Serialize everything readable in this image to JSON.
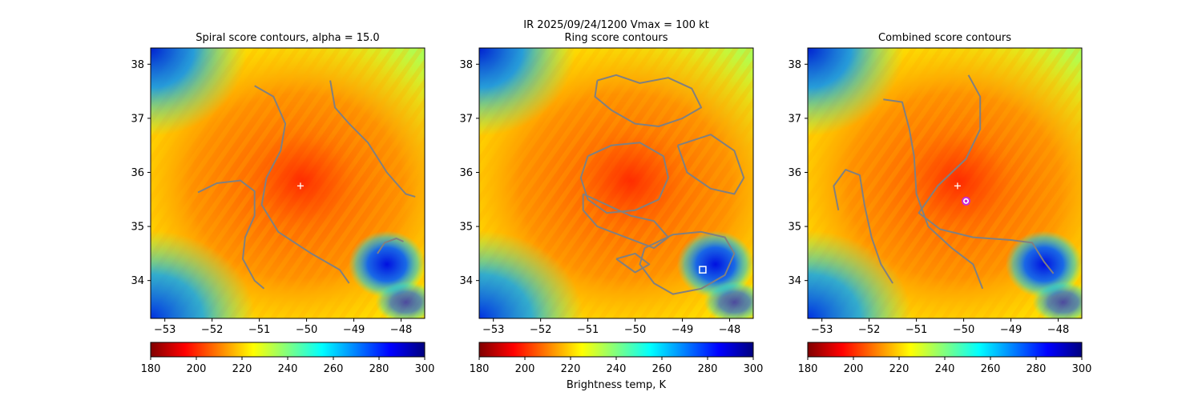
{
  "figure": {
    "suptitle_line1": "IR  2025/09/24/1200    Vmax = 100 kt",
    "colorbar_label": "Brightness temp, K"
  },
  "chart_data": [
    {
      "type": "heatmap",
      "title": "Spiral score contours, alpha = 15.0",
      "xlim": [
        -53.3,
        -47.5
      ],
      "ylim": [
        33.3,
        38.3
      ],
      "xticks": [
        -53,
        -52,
        -51,
        -50,
        -49,
        -48
      ],
      "xtick_labels": [
        "−53",
        "−52",
        "−51",
        "−50",
        "−49",
        "−48"
      ],
      "yticks": [
        34,
        35,
        36,
        37,
        38
      ],
      "ytick_labels": [
        "34",
        "35",
        "36",
        "37",
        "38"
      ],
      "field": "brightness_temperature_K",
      "contour_color": "#808080",
      "contours": [
        [
          [
            -52.3,
            35.63
          ],
          [
            -51.9,
            35.8
          ],
          [
            -51.4,
            35.85
          ],
          [
            -51.1,
            35.65
          ],
          [
            -51.1,
            35.2
          ],
          [
            -51.3,
            34.8
          ],
          [
            -51.35,
            34.4
          ],
          [
            -51.1,
            34.0
          ],
          [
            -50.9,
            33.85
          ]
        ],
        [
          [
            -51.1,
            37.6
          ],
          [
            -50.7,
            37.4
          ],
          [
            -50.45,
            36.9
          ],
          [
            -50.55,
            36.4
          ],
          [
            -50.85,
            35.9
          ],
          [
            -50.95,
            35.4
          ],
          [
            -50.6,
            34.9
          ],
          [
            -49.9,
            34.5
          ],
          [
            -49.3,
            34.2
          ],
          [
            -49.1,
            33.95
          ]
        ],
        [
          [
            -49.5,
            37.7
          ],
          [
            -49.4,
            37.2
          ],
          [
            -49.1,
            36.9
          ],
          [
            -48.7,
            36.55
          ],
          [
            -48.3,
            36.0
          ],
          [
            -47.9,
            35.6
          ],
          [
            -47.7,
            35.55
          ]
        ],
        [
          [
            -48.5,
            34.5
          ],
          [
            -48.35,
            34.7
          ],
          [
            -48.1,
            34.78
          ],
          [
            -47.95,
            34.72
          ]
        ]
      ],
      "markers": [
        {
          "kind": "plus",
          "lon": -50.13,
          "lat": 35.75,
          "color": "#ffffff"
        }
      ]
    },
    {
      "type": "heatmap",
      "title": "Ring score contours",
      "xlim": [
        -53.3,
        -47.5
      ],
      "ylim": [
        33.3,
        38.3
      ],
      "xticks": [
        -53,
        -52,
        -51,
        -50,
        -49,
        -48
      ],
      "xtick_labels": [
        "−53",
        "−52",
        "−51",
        "−50",
        "−49",
        "−48"
      ],
      "yticks": [
        34,
        35,
        36,
        37,
        38
      ],
      "ytick_labels": [
        "34",
        "35",
        "36",
        "37",
        "38"
      ],
      "field": "brightness_temperature_K",
      "contour_color": "#808080",
      "contours": [
        [
          [
            -50.8,
            37.7
          ],
          [
            -50.4,
            37.8
          ],
          [
            -49.9,
            37.65
          ],
          [
            -49.3,
            37.75
          ],
          [
            -48.8,
            37.55
          ],
          [
            -48.6,
            37.2
          ],
          [
            -49.0,
            37.0
          ],
          [
            -49.5,
            36.85
          ],
          [
            -50.0,
            36.9
          ],
          [
            -50.5,
            37.15
          ],
          [
            -50.85,
            37.4
          ],
          [
            -50.8,
            37.7
          ]
        ],
        [
          [
            -51.0,
            36.3
          ],
          [
            -50.5,
            36.5
          ],
          [
            -49.9,
            36.55
          ],
          [
            -49.4,
            36.3
          ],
          [
            -49.3,
            35.9
          ],
          [
            -49.5,
            35.5
          ],
          [
            -50.0,
            35.3
          ],
          [
            -50.6,
            35.25
          ],
          [
            -51.0,
            35.5
          ],
          [
            -51.15,
            35.9
          ],
          [
            -51.0,
            36.3
          ]
        ],
        [
          [
            -49.1,
            36.5
          ],
          [
            -48.4,
            36.7
          ],
          [
            -47.9,
            36.4
          ],
          [
            -47.7,
            35.9
          ],
          [
            -47.9,
            35.6
          ],
          [
            -48.4,
            35.7
          ],
          [
            -48.9,
            36.0
          ],
          [
            -49.1,
            36.5
          ]
        ],
        [
          [
            -51.1,
            35.6
          ],
          [
            -50.6,
            35.4
          ],
          [
            -50.1,
            35.2
          ],
          [
            -49.6,
            35.1
          ],
          [
            -49.3,
            34.8
          ],
          [
            -49.6,
            34.6
          ],
          [
            -50.2,
            34.8
          ],
          [
            -50.8,
            35.0
          ],
          [
            -51.1,
            35.3
          ],
          [
            -51.1,
            35.6
          ]
        ],
        [
          [
            -49.8,
            34.6
          ],
          [
            -49.2,
            34.85
          ],
          [
            -48.6,
            34.9
          ],
          [
            -48.1,
            34.8
          ],
          [
            -47.9,
            34.5
          ],
          [
            -48.1,
            34.1
          ],
          [
            -48.6,
            33.85
          ],
          [
            -49.2,
            33.75
          ],
          [
            -49.6,
            33.95
          ],
          [
            -49.9,
            34.3
          ],
          [
            -49.8,
            34.6
          ]
        ],
        [
          [
            -50.4,
            34.4
          ],
          [
            -50.0,
            34.5
          ],
          [
            -49.7,
            34.3
          ],
          [
            -50.0,
            34.15
          ],
          [
            -50.4,
            34.4
          ]
        ]
      ],
      "markers": [
        {
          "kind": "square",
          "lon": -48.57,
          "lat": 34.2,
          "color": "#ffffff"
        }
      ]
    },
    {
      "type": "heatmap",
      "title": "Combined score contours",
      "xlim": [
        -53.3,
        -47.5
      ],
      "ylim": [
        33.3,
        38.3
      ],
      "xticks": [
        -53,
        -52,
        -51,
        -50,
        -49,
        -48
      ],
      "xtick_labels": [
        "−53",
        "−52",
        "−51",
        "−50",
        "−49",
        "−48"
      ],
      "yticks": [
        34,
        35,
        36,
        37,
        38
      ],
      "ytick_labels": [
        "34",
        "35",
        "36",
        "37",
        "38"
      ],
      "field": "brightness_temperature_K",
      "contour_color": "#808080",
      "contours": [
        [
          [
            -52.65,
            35.3
          ],
          [
            -52.75,
            35.75
          ],
          [
            -52.5,
            36.05
          ],
          [
            -52.2,
            35.95
          ],
          [
            -52.1,
            35.4
          ],
          [
            -51.95,
            34.8
          ],
          [
            -51.75,
            34.3
          ],
          [
            -51.5,
            33.95
          ]
        ],
        [
          [
            -51.7,
            37.35
          ],
          [
            -51.3,
            37.3
          ],
          [
            -51.15,
            36.8
          ],
          [
            -51.05,
            36.3
          ],
          [
            -51.0,
            35.6
          ],
          [
            -50.75,
            35.0
          ],
          [
            -50.25,
            34.6
          ],
          [
            -49.8,
            34.3
          ],
          [
            -49.6,
            33.85
          ]
        ],
        [
          [
            -49.9,
            37.8
          ],
          [
            -49.65,
            37.4
          ],
          [
            -49.65,
            36.8
          ],
          [
            -49.95,
            36.25
          ],
          [
            -50.55,
            35.75
          ],
          [
            -50.95,
            35.25
          ],
          [
            -50.5,
            34.95
          ],
          [
            -49.8,
            34.8
          ],
          [
            -49.0,
            34.75
          ],
          [
            -48.55,
            34.7
          ],
          [
            -48.3,
            34.35
          ],
          [
            -48.1,
            34.13
          ]
        ]
      ],
      "markers": [
        {
          "kind": "plus",
          "lon": -50.13,
          "lat": 35.75,
          "color": "#ffffff"
        },
        {
          "kind": "circle",
          "lon": -49.95,
          "lat": 35.47,
          "color": "#cc2ad4"
        }
      ]
    }
  ],
  "colorbars": [
    {
      "vmin": 180,
      "vmax": 300,
      "ticks": [
        "180",
        "200",
        "220",
        "240",
        "260",
        "280",
        "300"
      ]
    },
    {
      "vmin": 180,
      "vmax": 300,
      "ticks": [
        "180",
        "200",
        "220",
        "240",
        "260",
        "280",
        "300"
      ]
    },
    {
      "vmin": 180,
      "vmax": 300,
      "ticks": [
        "180",
        "200",
        "220",
        "240",
        "260",
        "280",
        "300"
      ]
    }
  ],
  "colormap": {
    "name": "jet_r",
    "stops": [
      "#800000",
      "#ff0000",
      "#ff8000",
      "#ffff00",
      "#80ff80",
      "#00ffff",
      "#0080ff",
      "#0000ff",
      "#000080"
    ]
  }
}
